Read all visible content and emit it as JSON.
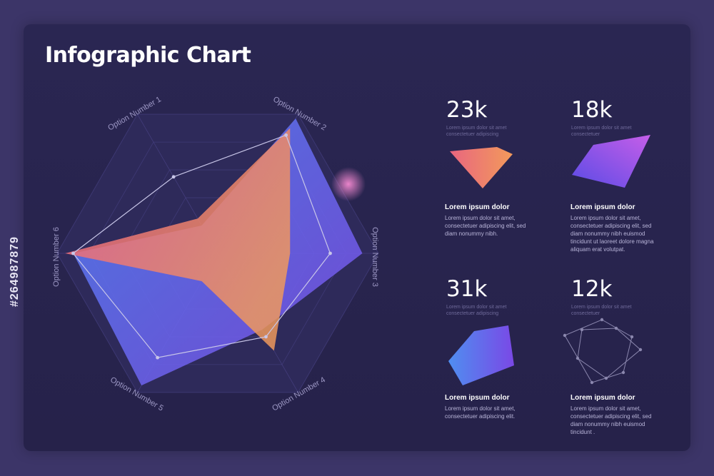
{
  "title": "Infographic Chart",
  "side_id": "#264987879",
  "chart_data": {
    "type": "radar",
    "title": "Infographic Chart",
    "axes": [
      "Option Number 1",
      "Option Number 2",
      "Option Number 3",
      "Option Number 4",
      "Option Number 5",
      "Option Number 6"
    ],
    "ylim": [
      0,
      1
    ],
    "grid": true,
    "series": [
      {
        "values": [
          0.25,
          0.9,
          0.45,
          0.7,
          0.2,
          0.95
        ],
        "color": "#e9667f"
      },
      {
        "values": [
          0.2,
          0.97,
          0.9,
          0.55,
          0.95,
          0.9
        ],
        "color": "#6a5cf0"
      },
      {
        "values": [
          0.55,
          0.85,
          0.7,
          0.6,
          0.75,
          0.9
        ],
        "color": "#c8c6e8"
      }
    ]
  },
  "stats": [
    {
      "value": "23k",
      "caption": "Lorem ipsum dolor sit amet consectetuer adipiscing",
      "heading": "Lorem ipsum dolor",
      "body": "Lorem ipsum dolor sit amet, consectetuer adipiscing elit, sed diam nonummy nibh.",
      "color_a": "#e9667f",
      "color_b": "#f29a5b"
    },
    {
      "value": "18k",
      "caption": "Lorem ipsum dolor sit amet consectetuer",
      "heading": "Lorem ipsum dolor",
      "body": "Lorem ipsum dolor sit amet, consectetuer adipiscing elit, sed diam nonummy nibh euismod tincidunt ut laoreet dolore magna aliquam erat volutpat.",
      "color_a": "#5a4be6",
      "color_b": "#c65ee8"
    },
    {
      "value": "31k",
      "caption": "Lorem ipsum dolor sit amet consectetuer adipiscing",
      "heading": "Lorem ipsum dolor",
      "body": "Lorem ipsum dolor sit amet, consectetuer adipiscing elit.",
      "color_a": "#4f8ef0",
      "color_b": "#7a48e6"
    },
    {
      "value": "12k",
      "caption": "Lorem ipsum dolor sit amet consectetuer",
      "heading": "Lorem ipsum dolor",
      "body": "Lorem ipsum dolor sit amet, consectetuer adipiscing elit, sed diam nonummy nibh euismod tincidunt .",
      "color_a": "#8b87ae",
      "color_b": "#8b87ae"
    }
  ]
}
